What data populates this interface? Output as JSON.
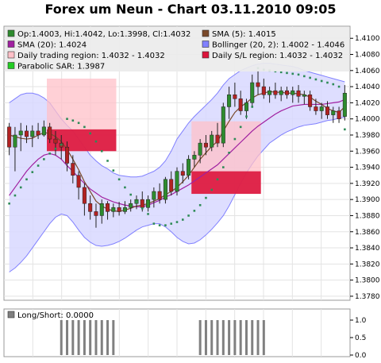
{
  "title": "Forex um Neun - Chart 03.11.2010 09:05",
  "legend": [
    {
      "label": "Op:1.4003, Hi:1.4042, Lo:1.3998, Cl:1.4032",
      "color": "#2e8b2e",
      "col": 0,
      "row": 0
    },
    {
      "label": "SMA (5): 1.4015",
      "color": "#7a4a2a",
      "col": 1,
      "row": 0
    },
    {
      "label": "SMA (20): 1.4024",
      "color": "#a020a0",
      "col": 0,
      "row": 1
    },
    {
      "label": "Bollinger (20, 2): 1.4002 - 1.4046",
      "color": "#8080ff",
      "col": 1,
      "row": 1
    },
    {
      "label": "Daily trading region: 1.4032 - 1.4032",
      "color": "#ffc0c8",
      "col": 0,
      "row": 2
    },
    {
      "label": "Daily S/L region: 1.4032 - 1.4032",
      "color": "#dc143c",
      "col": 1,
      "row": 2
    },
    {
      "label": "Parabolic SAR: 1.3987",
      "color": "#22cc22",
      "col": 0,
      "row": 3
    }
  ],
  "sub_legend": {
    "label": "Long/Short: 0.0000",
    "color": "#808080"
  },
  "colors": {
    "bull": "#2e8b2e",
    "bear": "#b22222",
    "sma5": "#7a4a2a",
    "sma20": "#a020a0",
    "band_fill": "#d8d8ff",
    "band_line": "#8080ff",
    "trade_region": "#ffc0c8",
    "sl_region": "#dc143c",
    "sar": "#2e8b57",
    "ls_bar": "#808080"
  },
  "chart_data": [
    {
      "type": "candlestick",
      "ylim": [
        1.3775,
        1.4115
      ],
      "yticks": [
        "1.3780",
        "1.3800",
        "1.3820",
        "1.3840",
        "1.3860",
        "1.3880",
        "1.3900",
        "1.3920",
        "1.3940",
        "1.3960",
        "1.3980",
        "1.4000",
        "1.4020",
        "1.4040",
        "1.4060",
        "1.4080",
        "1.4100"
      ],
      "candles": [
        [
          1.399,
          1.3995,
          1.3955,
          1.3965
        ],
        [
          1.3965,
          1.399,
          1.3935,
          1.398
        ],
        [
          1.398,
          1.3995,
          1.396,
          1.3985
        ],
        [
          1.3985,
          1.3992,
          1.397,
          1.3978
        ],
        [
          1.3978,
          1.3992,
          1.3965,
          1.3985
        ],
        [
          1.3985,
          1.3995,
          1.3975,
          1.398
        ],
        [
          1.398,
          1.3998,
          1.3978,
          1.399
        ],
        [
          1.399,
          1.3995,
          1.397,
          1.3975
        ],
        [
          1.3975,
          1.3985,
          1.3955,
          1.397
        ],
        [
          1.397,
          1.398,
          1.395,
          1.3965
        ],
        [
          1.3965,
          1.3972,
          1.3935,
          1.3945
        ],
        [
          1.3945,
          1.3955,
          1.392,
          1.393
        ],
        [
          1.393,
          1.3935,
          1.39,
          1.3915
        ],
        [
          1.3915,
          1.392,
          1.388,
          1.3895
        ],
        [
          1.3895,
          1.3905,
          1.3875,
          1.3885
        ],
        [
          1.3885,
          1.3895,
          1.3865,
          1.388
        ],
        [
          1.388,
          1.39,
          1.387,
          1.3895
        ],
        [
          1.3895,
          1.3898,
          1.3875,
          1.3885
        ],
        [
          1.3885,
          1.3895,
          1.3878,
          1.389
        ],
        [
          1.389,
          1.3897,
          1.388,
          1.3885
        ],
        [
          1.3885,
          1.3898,
          1.3882,
          1.389
        ],
        [
          1.389,
          1.39,
          1.3885,
          1.3895
        ],
        [
          1.3895,
          1.3905,
          1.3888,
          1.39
        ],
        [
          1.39,
          1.391,
          1.3885,
          1.389
        ],
        [
          1.389,
          1.3905,
          1.3885,
          1.39
        ],
        [
          1.39,
          1.3915,
          1.389,
          1.391
        ],
        [
          1.391,
          1.392,
          1.3895,
          1.39
        ],
        [
          1.39,
          1.3928,
          1.3895,
          1.3925
        ],
        [
          1.3925,
          1.3935,
          1.3905,
          1.391
        ],
        [
          1.391,
          1.394,
          1.3905,
          1.3935
        ],
        [
          1.3935,
          1.3945,
          1.392,
          1.393
        ],
        [
          1.393,
          1.3955,
          1.3925,
          1.395
        ],
        [
          1.395,
          1.396,
          1.394,
          1.3955
        ],
        [
          1.3955,
          1.3975,
          1.3945,
          1.397
        ],
        [
          1.397,
          1.398,
          1.3955,
          1.3965
        ],
        [
          1.3965,
          1.3985,
          1.396,
          1.398
        ],
        [
          1.398,
          1.3995,
          1.3965,
          1.397
        ],
        [
          1.397,
          1.402,
          1.3965,
          1.4015
        ],
        [
          1.4015,
          1.404,
          1.4,
          1.403
        ],
        [
          1.403,
          1.4045,
          1.4015,
          1.4025
        ],
        [
          1.4025,
          1.4035,
          1.4005,
          1.401
        ],
        [
          1.401,
          1.4025,
          1.4,
          1.402
        ],
        [
          1.402,
          1.4055,
          1.4015,
          1.4045
        ],
        [
          1.4045,
          1.406,
          1.403,
          1.404
        ],
        [
          1.404,
          1.405,
          1.4025,
          1.403
        ],
        [
          1.403,
          1.404,
          1.402,
          1.4035
        ],
        [
          1.4035,
          1.4045,
          1.4025,
          1.403
        ],
        [
          1.403,
          1.404,
          1.4022,
          1.4035
        ],
        [
          1.4035,
          1.404,
          1.4025,
          1.403
        ],
        [
          1.403,
          1.404,
          1.402,
          1.4035
        ],
        [
          1.4035,
          1.4042,
          1.402,
          1.4028
        ],
        [
          1.4028,
          1.4035,
          1.4018,
          1.403
        ],
        [
          1.403,
          1.4035,
          1.401,
          1.4015
        ],
        [
          1.4015,
          1.4025,
          1.4005,
          1.401
        ],
        [
          1.401,
          1.402,
          1.4,
          1.4015
        ],
        [
          1.4015,
          1.4022,
          1.4,
          1.4005
        ],
        [
          1.4005,
          1.4015,
          1.3995,
          1.401
        ],
        [
          1.401,
          1.4015,
          1.3995,
          1.4
        ],
        [
          1.4003,
          1.4042,
          1.3998,
          1.4032
        ]
      ],
      "sma5": [
        1.398,
        1.3978,
        1.3976,
        1.3975,
        1.3976,
        1.398,
        1.3983,
        1.3982,
        1.3978,
        1.3972,
        1.3962,
        1.395,
        1.3937,
        1.3922,
        1.391,
        1.3898,
        1.3892,
        1.3888,
        1.3886,
        1.3885,
        1.3887,
        1.3889,
        1.3892,
        1.3893,
        1.3895,
        1.3898,
        1.3901,
        1.3906,
        1.391,
        1.3915,
        1.3922,
        1.393,
        1.394,
        1.395,
        1.3958,
        1.3966,
        1.3972,
        1.3985,
        1.3997,
        1.4008,
        1.4015,
        1.402,
        1.4026,
        1.403,
        1.4032,
        1.4034,
        1.4033,
        1.4033,
        1.4032,
        1.4032,
        1.4031,
        1.403,
        1.4027,
        1.4022,
        1.4018,
        1.4013,
        1.401,
        1.4008,
        1.4015
      ],
      "sma20": [
        1.3905,
        1.3915,
        1.3925,
        1.3935,
        1.3943,
        1.395,
        1.3955,
        1.3957,
        1.3955,
        1.395,
        1.3942,
        1.3935,
        1.3927,
        1.392,
        1.3913,
        1.3908,
        1.3903,
        1.39,
        1.3897,
        1.3895,
        1.3893,
        1.3892,
        1.3891,
        1.3891,
        1.3893,
        1.3896,
        1.3899,
        1.3903,
        1.3906,
        1.391,
        1.3914,
        1.3918,
        1.3923,
        1.3928,
        1.3933,
        1.3938,
        1.3943,
        1.395,
        1.3957,
        1.3964,
        1.3971,
        1.3978,
        1.3985,
        1.3991,
        1.3996,
        1.4001,
        1.4006,
        1.401,
        1.4013,
        1.4016,
        1.4017,
        1.4018,
        1.4018,
        1.4018,
        1.4018,
        1.4019,
        1.402,
        1.4021,
        1.4024
      ],
      "boll_upper": [
        1.402,
        1.4025,
        1.403,
        1.4032,
        1.4032,
        1.403,
        1.4026,
        1.402,
        1.401,
        1.4,
        1.3992,
        1.3985,
        1.3975,
        1.3965,
        1.3955,
        1.3948,
        1.3942,
        1.3938,
        1.3933,
        1.393,
        1.3929,
        1.3928,
        1.3928,
        1.3929,
        1.3932,
        1.3935,
        1.394,
        1.3948,
        1.396,
        1.3975,
        1.3985,
        1.3995,
        1.4003,
        1.401,
        1.4017,
        1.4024,
        1.4032,
        1.4042,
        1.405,
        1.4055,
        1.406,
        1.4063,
        1.4066,
        1.4068,
        1.4069,
        1.4069,
        1.4068,
        1.4067,
        1.4066,
        1.4065,
        1.4063,
        1.406,
        1.4058,
        1.4056,
        1.4054,
        1.4052,
        1.405,
        1.4048,
        1.4046
      ],
      "boll_lower": [
        1.381,
        1.3815,
        1.3822,
        1.383,
        1.384,
        1.385,
        1.386,
        1.387,
        1.3878,
        1.3882,
        1.388,
        1.3872,
        1.3862,
        1.3853,
        1.3847,
        1.3843,
        1.3842,
        1.3843,
        1.3845,
        1.3848,
        1.3852,
        1.3857,
        1.3862,
        1.3866,
        1.3868,
        1.387,
        1.387,
        1.3866,
        1.386,
        1.3853,
        1.3848,
        1.3845,
        1.3846,
        1.385,
        1.3856,
        1.3863,
        1.3871,
        1.388,
        1.3892,
        1.3906,
        1.392,
        1.3933,
        1.3944,
        1.3954,
        1.3962,
        1.397,
        1.3975,
        1.398,
        1.3984,
        1.3987,
        1.399,
        1.3992,
        1.3993,
        1.3994,
        1.3996,
        1.3998,
        1.3999,
        1.4001,
        1.4002
      ],
      "sar": [
        1.3895,
        1.3905,
        1.3915,
        1.3925,
        1.3934,
        1.3942,
        1.395,
        1.3957,
        1.3963,
        1.3968,
        1.4,
        1.3998,
        1.3995,
        1.399,
        1.3982,
        1.3972,
        1.396,
        1.3948,
        1.3936,
        1.3925,
        1.3915,
        1.3906,
        1.3897,
        1.3889,
        1.3882,
        1.387,
        1.3868,
        1.3868,
        1.387,
        1.3872,
        1.3875,
        1.388,
        1.3886,
        1.3893,
        1.3902,
        1.3912,
        1.3925,
        1.394,
        1.3958,
        1.3975,
        1.399,
        1.4003,
        1.4015,
        1.4063,
        1.4061,
        1.406,
        1.4059,
        1.4058,
        1.4057,
        1.4056,
        1.4055,
        1.4053,
        1.4051,
        1.4049,
        1.4047,
        1.4045,
        1.4043,
        1.404,
        1.3987
      ],
      "trade_regions": [
        {
          "x0": 7,
          "x1": 18,
          "y0": 1.396,
          "y1": 1.405
        },
        {
          "x0": 32,
          "x1": 43,
          "y0": 1.3907,
          "y1": 1.3997
        }
      ],
      "sl_regions": [
        {
          "x0": 7,
          "x1": 18,
          "y0": 1.396,
          "y1": 1.3987
        },
        {
          "x0": 32,
          "x1": 43,
          "y0": 1.3907,
          "y1": 1.3935
        }
      ]
    },
    {
      "type": "bar",
      "ylim": [
        0,
        1.0
      ],
      "yticks": [
        "0.0",
        "0.5",
        "1.0"
      ],
      "values": [
        0,
        0,
        0,
        0,
        0,
        0,
        0,
        0,
        0,
        1,
        1,
        1,
        1,
        1,
        1,
        1,
        1,
        1,
        1,
        0,
        0,
        0,
        0,
        0,
        0,
        0,
        0,
        0,
        0,
        0,
        0,
        0,
        0,
        1,
        1,
        1,
        1,
        1,
        1,
        1,
        1,
        1,
        1,
        1,
        1,
        0,
        0,
        0,
        0,
        0,
        0,
        0,
        0,
        0,
        0,
        0,
        0,
        0,
        0
      ]
    }
  ]
}
